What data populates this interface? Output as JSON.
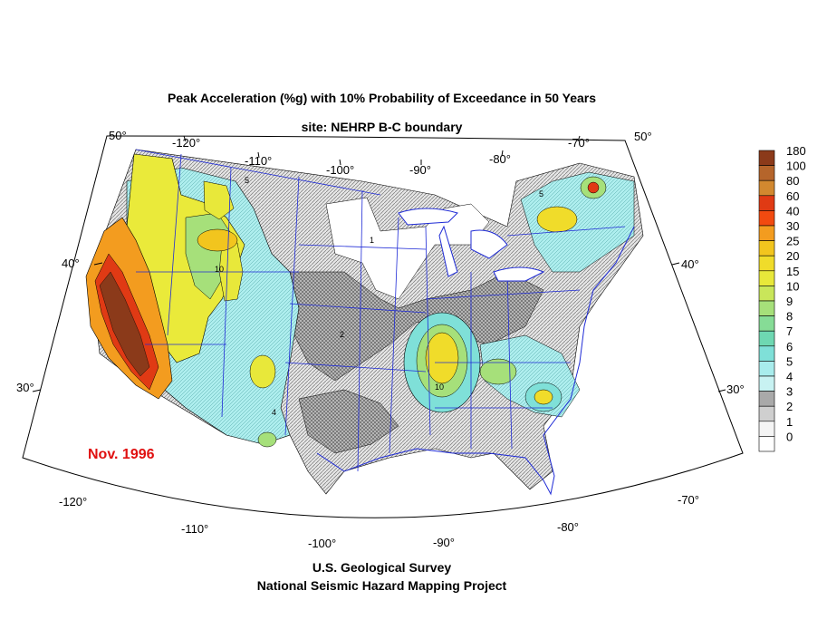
{
  "title": "Peak Acceleration (%g) with 10% Probability of Exceedance in 50 Years",
  "subtitle": "site: NEHRP B-C boundary",
  "date_label": "Nov. 1996",
  "footer": {
    "line1": "U.S. Geological Survey",
    "line2": "National Seismic Hazard Mapping Project"
  },
  "legend": {
    "labels": [
      "180",
      "100",
      "80",
      "60",
      "40",
      "30",
      "25",
      "20",
      "15",
      "10",
      "9",
      "8",
      "7",
      "6",
      "5",
      "4",
      "3",
      "2",
      "1",
      "0"
    ],
    "colors": [
      "#8b3a1a",
      "#b5652b",
      "#d2882f",
      "#e03a14",
      "#f24a10",
      "#f39c1f",
      "#f2c51e",
      "#f0dc2a",
      "#e8e83a",
      "#c9e65a",
      "#a6e07a",
      "#86dc96",
      "#6ed8b2",
      "#7fe0d8",
      "#a8ecec",
      "#c8f2f2",
      "#a9a9a9",
      "#cfcfcf",
      "#f4f4f4",
      "#ffffff"
    ]
  },
  "map": {
    "longitude_labels_top": [
      "-120°",
      "-110°",
      "-100°",
      "-90°",
      "-80°",
      "-70°"
    ],
    "longitude_labels_bottom": [
      "-120°",
      "-110°",
      "-100°",
      "-90°",
      "-80°",
      "-70°"
    ],
    "latitude_labels_left": [
      "50°",
      "40°",
      "30°"
    ],
    "latitude_labels_right": [
      "50°",
      "40°",
      "30°"
    ],
    "colors": {
      "border": "#000000",
      "state_lines": "#1f2bd6",
      "contour": "#000000"
    },
    "zones": [
      {
        "name": "california-high",
        "level": "60"
      },
      {
        "name": "new-madrid",
        "level": "20"
      },
      {
        "name": "charleston",
        "level": "20"
      },
      {
        "name": "new-england",
        "level": "60"
      }
    ]
  }
}
